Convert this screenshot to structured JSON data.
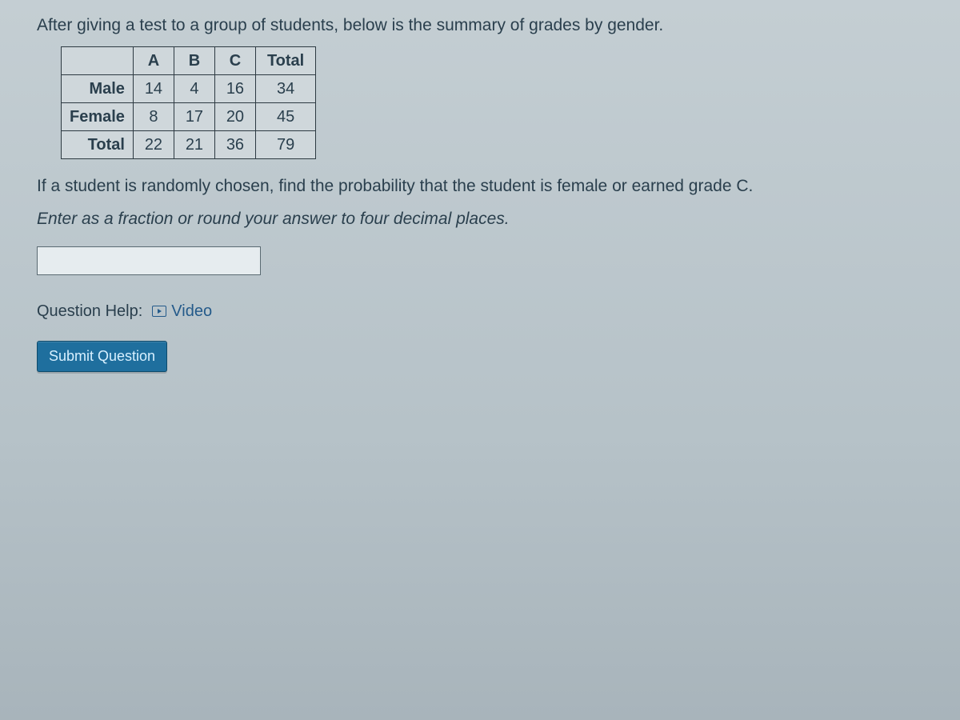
{
  "prompt": {
    "line1": "After giving a test to a group of students, below is the summary of grades by gender.",
    "line2": "If a student is randomly chosen, find the probability that the student is female or earned grade C.",
    "instruction": "Enter as a fraction or round your answer to four decimal places."
  },
  "table": {
    "columns": [
      "A",
      "B",
      "C",
      "Total"
    ],
    "rows": [
      {
        "label": "Male",
        "cells": [
          "14",
          "4",
          "16",
          "34"
        ]
      },
      {
        "label": "Female",
        "cells": [
          "8",
          "17",
          "20",
          "45"
        ]
      },
      {
        "label": "Total",
        "cells": [
          "22",
          "21",
          "36",
          "79"
        ]
      }
    ],
    "styling": {
      "border_color": "#2d3a42",
      "background_color": "#cfd7db",
      "cell_fontsize": 20,
      "header_fontweight": "bold"
    }
  },
  "answer": {
    "value": "",
    "placeholder": ""
  },
  "help": {
    "label": "Question Help:",
    "video_label": "Video"
  },
  "submit": {
    "label": "Submit Question"
  },
  "colors": {
    "page_bg_top": "#c4ced3",
    "page_bg_bottom": "#a8b4bb",
    "text": "#2a3f4d",
    "link": "#245a8a",
    "button_bg": "#1f6f9e",
    "button_text": "#d7f0ff"
  }
}
